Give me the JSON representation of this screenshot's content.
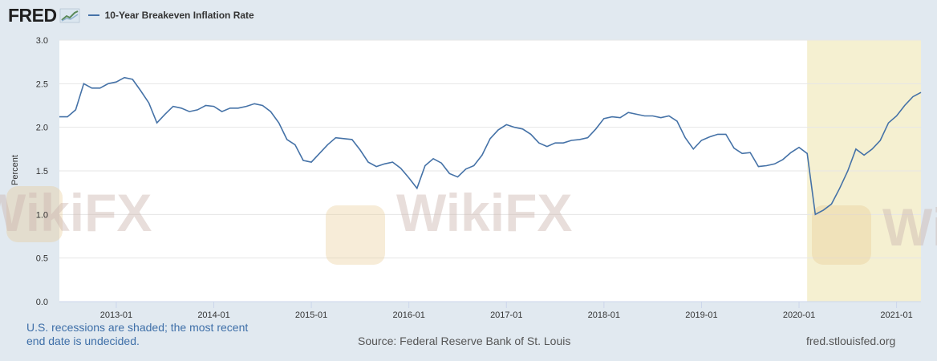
{
  "header": {
    "logo_text": "FRED",
    "legend_label": "10-Year Breakeven Inflation Rate",
    "series_color": "#4572a7"
  },
  "footer": {
    "recession_note": "U.S. recessions are shaded; the most recent end date is undecided.",
    "source": "Source: Federal Reserve Bank of St. Louis",
    "site": "fred.stlouisfed.org"
  },
  "watermark": {
    "text": "WikiFX"
  },
  "chart_data": {
    "type": "line",
    "title": "",
    "xlabel": "",
    "ylabel": "Percent",
    "ylim": [
      0,
      3.0
    ],
    "yticks": [
      "0.0",
      "0.5",
      "1.0",
      "1.5",
      "2.0",
      "2.5",
      "3.0"
    ],
    "xticks": [
      "2013-01",
      "2014-01",
      "2015-01",
      "2016-01",
      "2017-01",
      "2018-01",
      "2019-01",
      "2020-01",
      "2021-01"
    ],
    "xlim": [
      "2012-06",
      "2021-04"
    ],
    "grid": true,
    "recession": {
      "start": "2020-02",
      "end": "2021-04",
      "color": "#f5f0d1"
    },
    "series": [
      {
        "name": "10-Year Breakeven Inflation Rate",
        "color": "#4572a7",
        "x": [
          "2012-06",
          "2012-07",
          "2012-08",
          "2012-09",
          "2012-10",
          "2012-11",
          "2012-12",
          "2013-01",
          "2013-02",
          "2013-03",
          "2013-04",
          "2013-05",
          "2013-06",
          "2013-07",
          "2013-08",
          "2013-09",
          "2013-10",
          "2013-11",
          "2013-12",
          "2014-01",
          "2014-02",
          "2014-03",
          "2014-04",
          "2014-05",
          "2014-06",
          "2014-07",
          "2014-08",
          "2014-09",
          "2014-10",
          "2014-11",
          "2014-12",
          "2015-01",
          "2015-02",
          "2015-03",
          "2015-04",
          "2015-05",
          "2015-06",
          "2015-07",
          "2015-08",
          "2015-09",
          "2015-10",
          "2015-11",
          "2015-12",
          "2016-01",
          "2016-02",
          "2016-03",
          "2016-04",
          "2016-05",
          "2016-06",
          "2016-07",
          "2016-08",
          "2016-09",
          "2016-10",
          "2016-11",
          "2016-12",
          "2017-01",
          "2017-02",
          "2017-03",
          "2017-04",
          "2017-05",
          "2017-06",
          "2017-07",
          "2017-08",
          "2017-09",
          "2017-10",
          "2017-11",
          "2017-12",
          "2018-01",
          "2018-02",
          "2018-03",
          "2018-04",
          "2018-05",
          "2018-06",
          "2018-07",
          "2018-08",
          "2018-09",
          "2018-10",
          "2018-11",
          "2018-12",
          "2019-01",
          "2019-02",
          "2019-03",
          "2019-04",
          "2019-05",
          "2019-06",
          "2019-07",
          "2019-08",
          "2019-09",
          "2019-10",
          "2019-11",
          "2019-12",
          "2020-01",
          "2020-02",
          "2020-03",
          "2020-04",
          "2020-05",
          "2020-06",
          "2020-07",
          "2020-08",
          "2020-09",
          "2020-10",
          "2020-11",
          "2020-12",
          "2021-01",
          "2021-02",
          "2021-03",
          "2021-04"
        ],
        "values": [
          2.12,
          2.12,
          2.2,
          2.5,
          2.45,
          2.45,
          2.5,
          2.52,
          2.57,
          2.55,
          2.42,
          2.28,
          2.05,
          2.15,
          2.24,
          2.22,
          2.18,
          2.2,
          2.25,
          2.24,
          2.18,
          2.22,
          2.22,
          2.24,
          2.27,
          2.25,
          2.18,
          2.05,
          1.86,
          1.8,
          1.62,
          1.6,
          1.7,
          1.8,
          1.88,
          1.87,
          1.86,
          1.74,
          1.6,
          1.55,
          1.58,
          1.6,
          1.53,
          1.42,
          1.3,
          1.56,
          1.64,
          1.59,
          1.47,
          1.43,
          1.52,
          1.56,
          1.68,
          1.87,
          1.97,
          2.03,
          2.0,
          1.98,
          1.92,
          1.82,
          1.78,
          1.82,
          1.82,
          1.85,
          1.86,
          1.88,
          1.98,
          2.1,
          2.12,
          2.11,
          2.17,
          2.15,
          2.13,
          2.13,
          2.11,
          2.13,
          2.07,
          1.88,
          1.75,
          1.85,
          1.89,
          1.92,
          1.92,
          1.76,
          1.7,
          1.71,
          1.55,
          1.56,
          1.58,
          1.63,
          1.71,
          1.77,
          1.7,
          1.0,
          1.05,
          1.12,
          1.3,
          1.5,
          1.75,
          1.68,
          1.75,
          1.85,
          2.05,
          2.13,
          2.25,
          2.35,
          2.4
        ]
      }
    ]
  }
}
